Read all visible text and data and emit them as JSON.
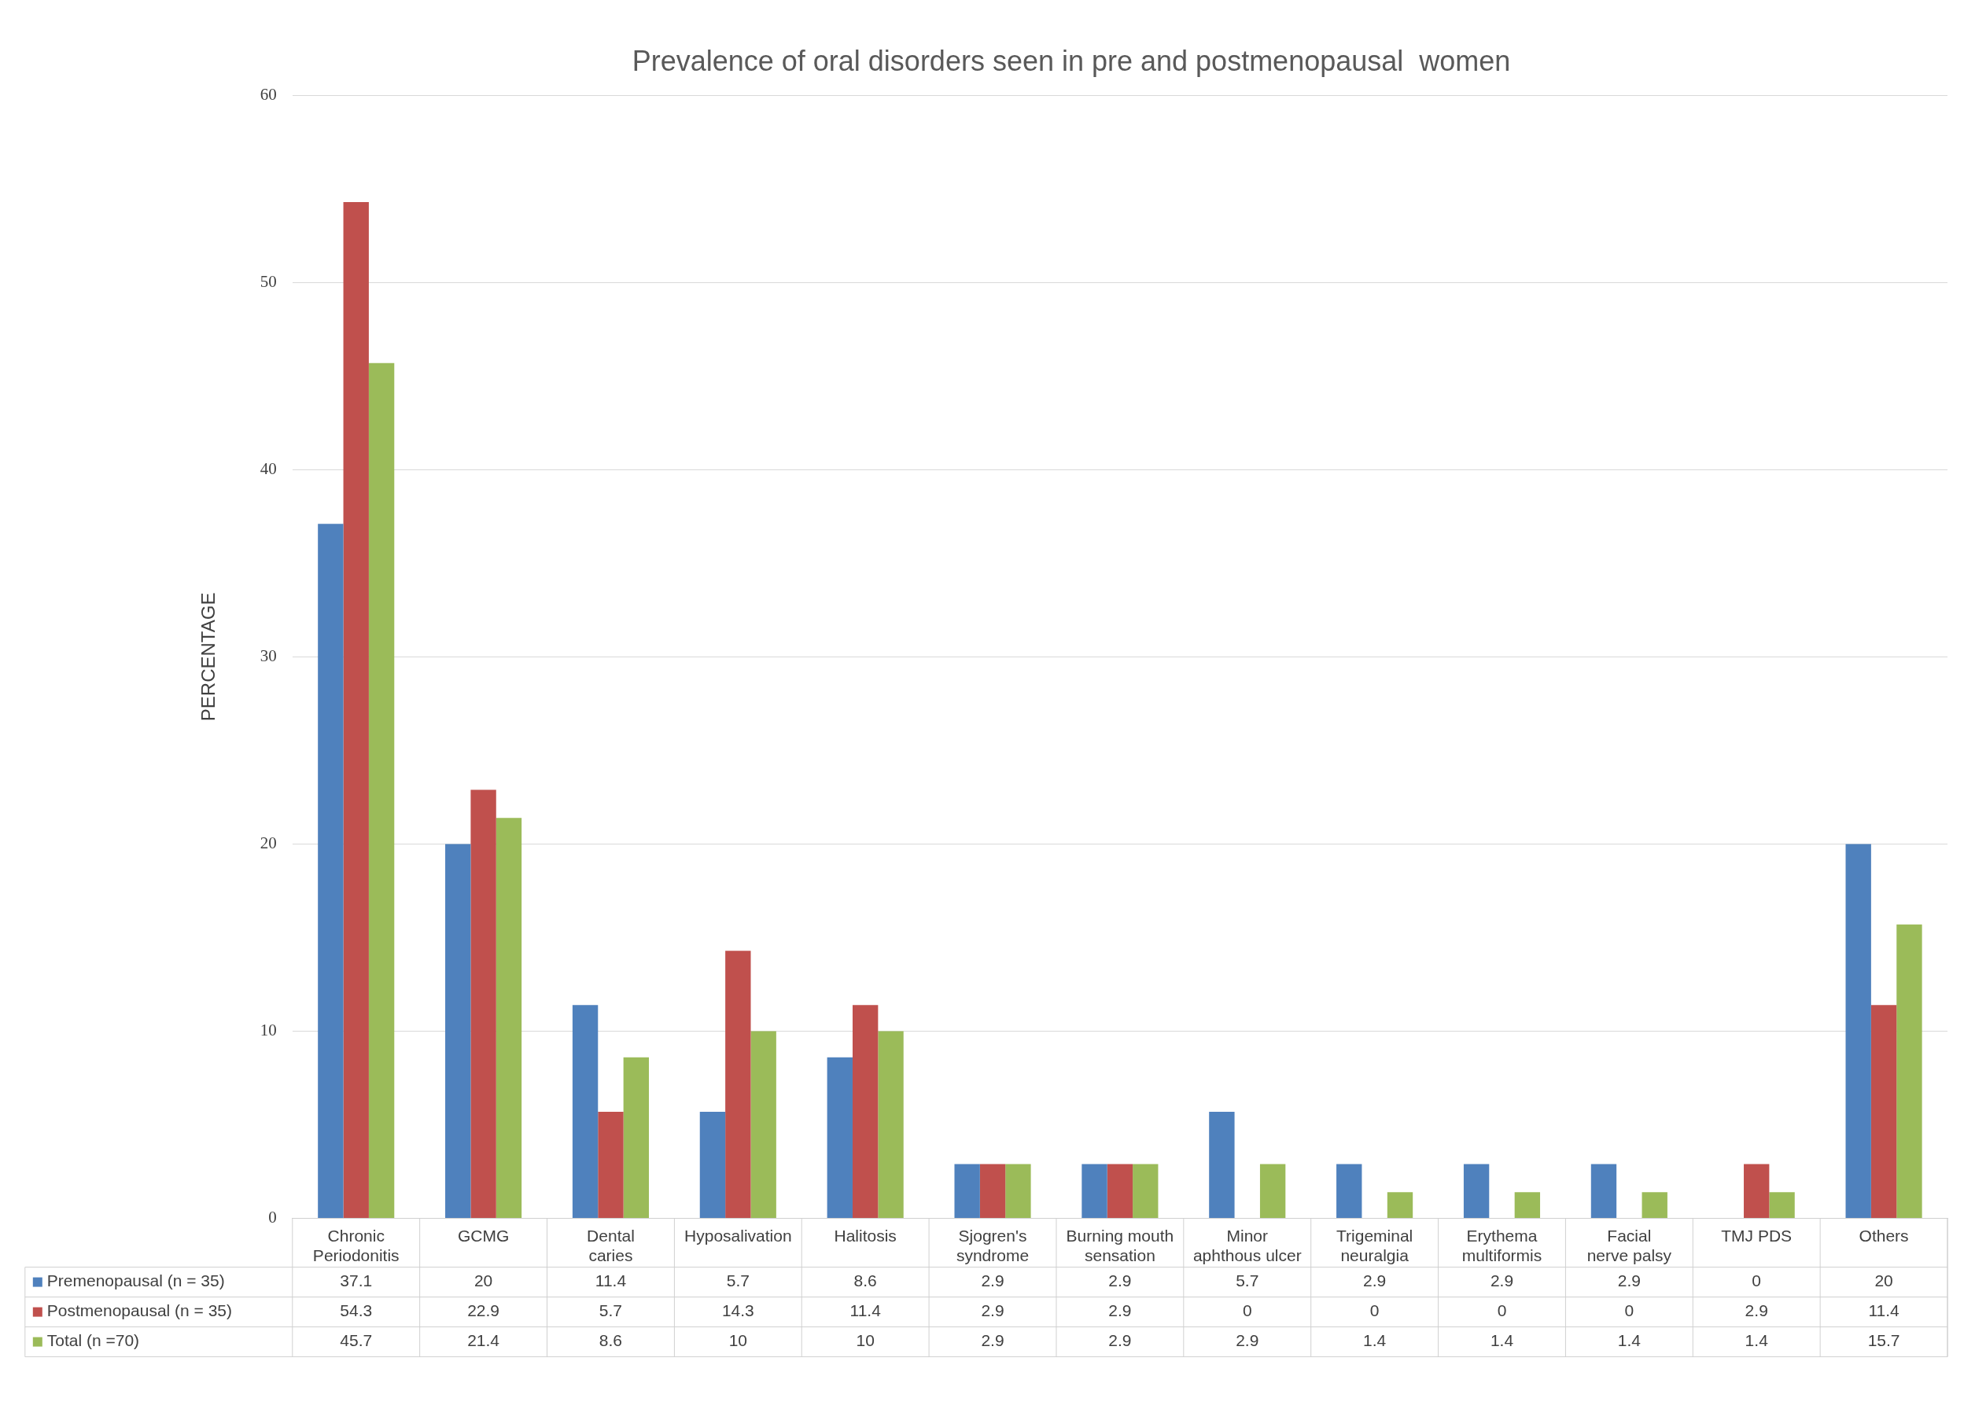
{
  "chart_data": {
    "type": "bar",
    "title": "Prevalence of oral disorders seen in pre and postmenopausal  women",
    "ylabel": "PERCENTAGE",
    "categories": [
      "Chronic Periodonitis",
      "GCMG",
      "Dental caries",
      "Hyposalivation",
      "Halitosis",
      "Sjogren's syndrome",
      "Burning mouth sensation",
      "Minor aphthous ulcer",
      "Trigeminal neuralgia",
      "Erythema multiformis",
      "Facial nerve palsy",
      "TMJ PDS",
      "Others"
    ],
    "series": [
      {
        "name": "Premenopausal (n = 35)",
        "color": "#4f81bd",
        "values": [
          37.1,
          20,
          11.4,
          5.7,
          8.6,
          2.9,
          2.9,
          5.7,
          2.9,
          2.9,
          2.9,
          0,
          20
        ]
      },
      {
        "name": "Postmenopausal (n = 35)",
        "color": "#c0504d",
        "values": [
          54.3,
          22.9,
          5.7,
          14.3,
          11.4,
          2.9,
          2.9,
          0,
          0,
          0,
          0,
          2.9,
          11.4
        ]
      },
      {
        "name": "Total (n =70)",
        "color": "#9bbb59",
        "values": [
          45.7,
          21.4,
          8.6,
          10,
          10,
          2.9,
          2.9,
          2.9,
          1.4,
          1.4,
          1.4,
          1.4,
          15.7
        ]
      }
    ],
    "ylim": [
      0,
      60
    ],
    "yticks": [
      0,
      10,
      20,
      30,
      40,
      50,
      60
    ],
    "grid": "y",
    "legend": "bottom",
    "data_labels": true
  }
}
